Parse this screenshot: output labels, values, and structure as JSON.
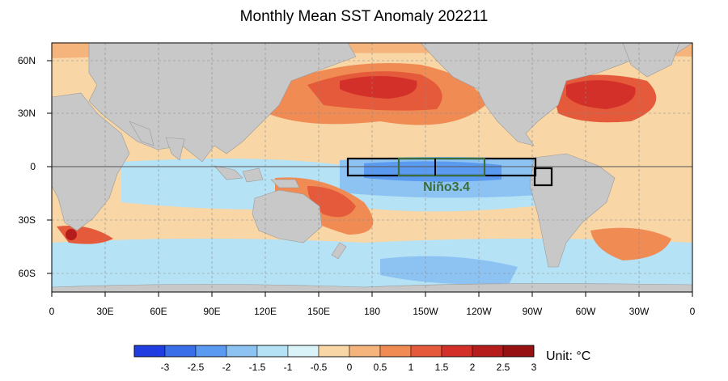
{
  "title": "Monthly Mean SST Anomaly 202211",
  "lat_labels": [
    "60N",
    "30N",
    "0",
    "30S",
    "60S"
  ],
  "lon_labels": [
    "0",
    "30E",
    "60E",
    "90E",
    "120E",
    "150E",
    "180",
    "150W",
    "120W",
    "90W",
    "60W",
    "30W",
    "0"
  ],
  "region_label": "Niño3.4",
  "colorbar": {
    "colors": [
      "#1f3de0",
      "#3a6fea",
      "#5a9af0",
      "#8cc3f3",
      "#b6e2f6",
      "#d9f3f8",
      "#f8d6a5",
      "#f5b47c",
      "#f08b54",
      "#e55a3a",
      "#d3302a",
      "#b51d1d",
      "#961111"
    ],
    "labels": [
      "-3",
      "-2.5",
      "-2",
      "-1.5",
      "-1",
      "-0.5",
      "0",
      "0.5",
      "1",
      "1.5",
      "2",
      "2.5",
      "3"
    ]
  },
  "unit_label": "Unit: °C",
  "colors": {
    "land": "#c8c8c8",
    "box_green": "#3b6e3b"
  }
}
